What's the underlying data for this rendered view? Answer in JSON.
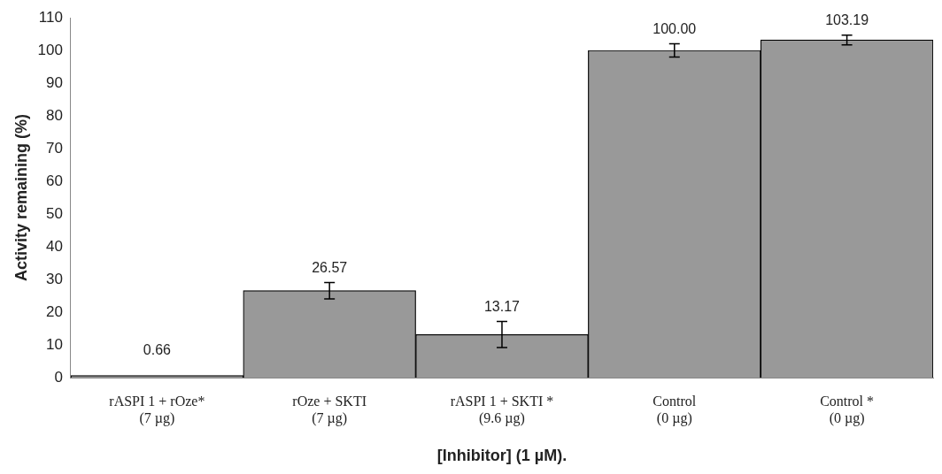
{
  "chart_data": {
    "type": "bar",
    "categories": [
      "rASPI 1 + rOze*\n(7 µg)",
      "rOze + SKTI\n(7 µg)",
      "rASPI 1 + SKTI *\n(9.6 µg)",
      "Control\n(0 µg)",
      "Control *\n(0 µg)"
    ],
    "values": [
      0.66,
      26.57,
      13.17,
      100.0,
      103.19
    ],
    "errors": [
      null,
      2.5,
      4,
      2,
      1.5
    ],
    "color": "#999999",
    "xlabel": "[Inhibitor] (1 µM).",
    "ylabel": "Activity remaining (%)",
    "ylim": [
      0,
      110
    ],
    "yticks": [
      0,
      10,
      20,
      30,
      40,
      50,
      60,
      70,
      80,
      90,
      100,
      110
    ],
    "value_labels": [
      "0.66",
      "26.57",
      "13.17",
      "100.00",
      "103.19"
    ],
    "grid": false,
    "legend": false
  }
}
